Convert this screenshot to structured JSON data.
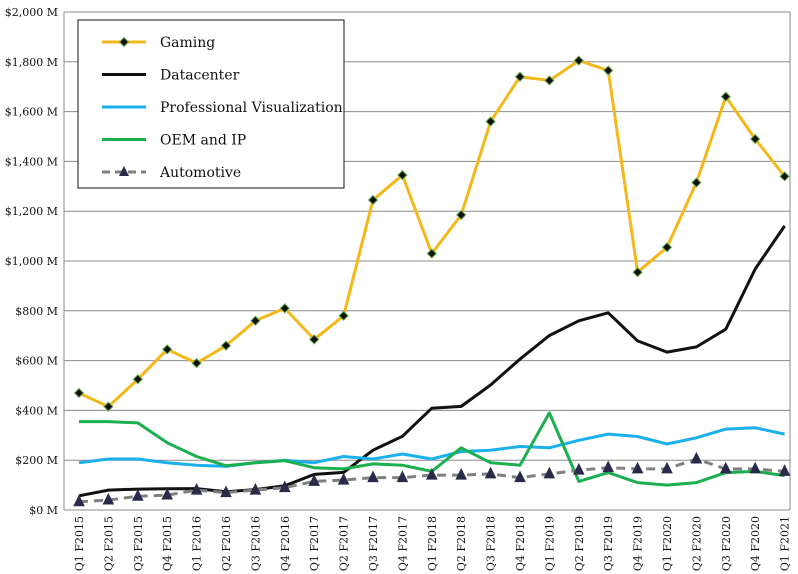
{
  "chart_data": {
    "type": "line",
    "title": "",
    "xlabel": "",
    "ylabel": "",
    "ylim": [
      0,
      2000
    ],
    "y_ticks": [
      "$0 M",
      "$200 M",
      "$400 M",
      "$600 M",
      "$800 M",
      "$1,000 M",
      "$1,200 M",
      "$1,400 M",
      "$1,600 M",
      "$1,800 M",
      "$2,000 M"
    ],
    "grid": "horizontal",
    "legend_position": "top-left",
    "categories": [
      "Q1 F2015",
      "Q2 F2015",
      "Q3 F2015",
      "Q4 F2015",
      "Q1 F2016",
      "Q2 F2016",
      "Q3 F2016",
      "Q4 F2016",
      "Q1 F2017",
      "Q2 F2017",
      "Q3 F2017",
      "Q4 F2017",
      "Q1 F2018",
      "Q2 F2018",
      "Q3 F2018",
      "Q4 F2018",
      "Q1 F2019",
      "Q2 F2019",
      "Q3 F2019",
      "Q4 F2019",
      "Q1 F2020",
      "Q2 F2020",
      "Q3 F2020",
      "Q4 F2020",
      "Q1 F2021"
    ],
    "series": [
      {
        "name": "Gaming",
        "color": "#f5b81a",
        "marker": "diamond",
        "dashed": false,
        "values": [
          470,
          415,
          525,
          645,
          590,
          660,
          760,
          810,
          685,
          780,
          1245,
          1345,
          1030,
          1185,
          1560,
          1740,
          1725,
          1805,
          1765,
          955,
          1055,
          1315,
          1660,
          1490,
          1340
        ]
      },
      {
        "name": "Datacenter",
        "color": "#111111",
        "marker": "none",
        "dashed": false,
        "values": [
          57,
          80,
          84,
          85,
          86,
          73,
          82,
          97,
          143,
          151,
          240,
          296,
          409,
          416,
          502,
          606,
          701,
          760,
          792,
          679,
          634,
          655,
          726,
          968,
          1141
        ]
      },
      {
        "name": "Professional Visualization",
        "color": "#1ab0ea",
        "marker": "none",
        "dashed": false,
        "values": [
          190,
          205,
          205,
          190,
          180,
          175,
          190,
          200,
          190,
          215,
          205,
          225,
          205,
          235,
          240,
          255,
          250,
          280,
          305,
          295,
          265,
          290,
          325,
          330,
          305
        ]
      },
      {
        "name": "OEM and IP",
        "color": "#1aaf4f",
        "marker": "none",
        "dashed": false,
        "values": [
          355,
          355,
          350,
          270,
          215,
          178,
          190,
          198,
          170,
          165,
          185,
          180,
          155,
          250,
          190,
          180,
          390,
          115,
          150,
          110,
          100,
          110,
          150,
          155,
          138
        ]
      },
      {
        "name": "Automotive",
        "color": "#808080",
        "marker": "triangle",
        "dashed": true,
        "values": [
          33,
          40,
          55,
          60,
          80,
          70,
          80,
          90,
          115,
          120,
          130,
          130,
          140,
          140,
          145,
          130,
          145,
          160,
          170,
          165,
          165,
          205,
          165,
          165,
          155
        ]
      }
    ]
  }
}
